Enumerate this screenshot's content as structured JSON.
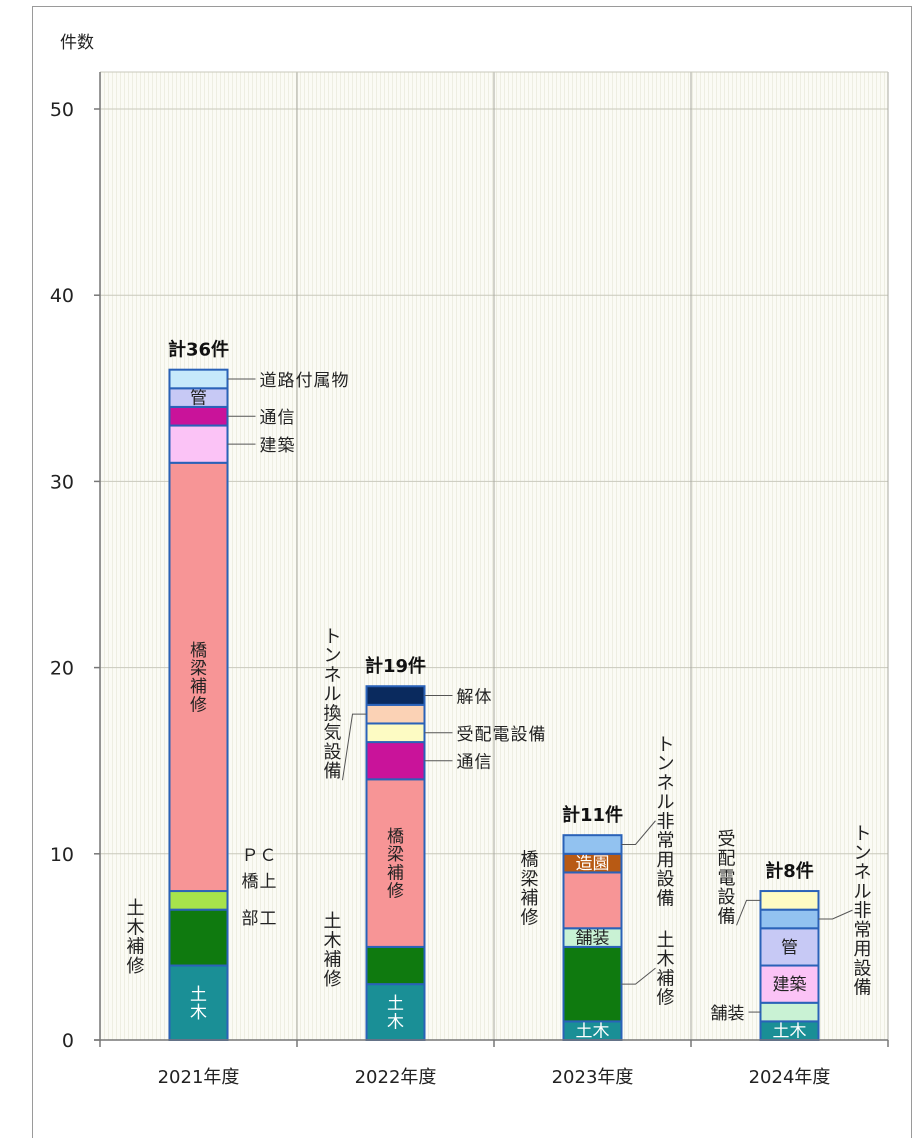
{
  "chart_data": {
    "type": "bar",
    "stacked": true,
    "ylabel": "件数",
    "ylim": [
      0,
      50
    ],
    "yticks": [
      0,
      10,
      20,
      30,
      40,
      50
    ],
    "grid": true,
    "categories": [
      "2021年度",
      "2022年度",
      "2023年度",
      "2024年度"
    ],
    "totals": [
      "計36件",
      "計19件",
      "計11件",
      "計8件"
    ],
    "colors": {
      "土木": "#1a8f96",
      "土木補修": "#0f7a0f",
      "PC橋上部工": "#a7e34b",
      "橋梁補修": "#f79596",
      "建築": "#fbc3f6",
      "通信": "#c9139a",
      "管": "#c7c9f5",
      "道路付属物": "#c6e9fb",
      "受配電設備": "#fdfbc3",
      "トンネル換気設備": "#fbd2b5",
      "解体": "#0a2a5e",
      "舗装": "#c9f2d4",
      "造園": "#b85a14",
      "トンネル非常用設備": "#92c2f0",
      "outline": "#2a62b8"
    },
    "bars": [
      {
        "category": "2021年度",
        "segments": [
          {
            "name": "土木",
            "value": 4,
            "label": "土木"
          },
          {
            "name": "土木補修",
            "value": 3,
            "label": ""
          },
          {
            "name": "PC橋上部工",
            "value": 1,
            "label": ""
          },
          {
            "name": "橋梁補修",
            "value": 23,
            "label": "橋梁補修"
          },
          {
            "name": "建築",
            "value": 2,
            "label": ""
          },
          {
            "name": "通信",
            "value": 1,
            "label": ""
          },
          {
            "name": "管",
            "value": 1,
            "label": "管"
          },
          {
            "name": "道路付属物",
            "value": 1,
            "label": ""
          }
        ]
      },
      {
        "category": "2022年度",
        "segments": [
          {
            "name": "土木",
            "value": 3,
            "label": "土木"
          },
          {
            "name": "土木補修",
            "value": 2,
            "label": ""
          },
          {
            "name": "橋梁補修",
            "value": 9,
            "label": "橋梁補修"
          },
          {
            "name": "通信",
            "value": 2,
            "label": ""
          },
          {
            "name": "受配電設備",
            "value": 1,
            "label": ""
          },
          {
            "name": "トンネル換気設備",
            "value": 1,
            "label": ""
          },
          {
            "name": "解体",
            "value": 1,
            "label": ""
          }
        ]
      },
      {
        "category": "2023年度",
        "segments": [
          {
            "name": "土木",
            "value": 1,
            "label": "土木"
          },
          {
            "name": "土木補修",
            "value": 4,
            "label": ""
          },
          {
            "name": "舗装",
            "value": 1,
            "label": "舗装"
          },
          {
            "name": "橋梁補修",
            "value": 3,
            "label": ""
          },
          {
            "name": "造園",
            "value": 1,
            "label": "造園"
          },
          {
            "name": "トンネル非常用設備",
            "value": 1,
            "label": ""
          }
        ]
      },
      {
        "category": "2024年度",
        "segments": [
          {
            "name": "土木",
            "value": 1,
            "label": "土木"
          },
          {
            "name": "舗装",
            "value": 1,
            "label": ""
          },
          {
            "name": "建築",
            "value": 2,
            "label": "建築"
          },
          {
            "name": "管",
            "value": 2,
            "label": "管"
          },
          {
            "name": "トンネル非常用設備",
            "value": 1,
            "label": ""
          },
          {
            "name": "受配電設備",
            "value": 1,
            "label": ""
          }
        ]
      }
    ],
    "annotations": [
      {
        "bar": 0,
        "level": 35.5,
        "text": "道路付属物",
        "side": "right",
        "orient": "h"
      },
      {
        "bar": 0,
        "level": 33.5,
        "text": "通信",
        "side": "right",
        "orient": "h"
      },
      {
        "bar": 0,
        "level": 32,
        "text": "建築",
        "side": "right",
        "orient": "h"
      },
      {
        "bar": 0,
        "level": 7.5,
        "text": "ＰＣ",
        "side": "right",
        "orient": "h",
        "noLeader": true,
        "textLevel": 10.0
      },
      {
        "bar": 0,
        "level": 7.5,
        "text": "橋上",
        "side": "right",
        "orient": "h",
        "noLeader": true,
        "textLevel": 8.6
      },
      {
        "bar": 0,
        "level": 7.5,
        "text": "部工",
        "side": "right",
        "orient": "h",
        "noLeader": true,
        "textLevel": 6.6
      },
      {
        "bar": 0,
        "level": 5.5,
        "text": "土木補修",
        "side": "left",
        "orient": "v",
        "noLeader": true,
        "textLevel": 7.2
      },
      {
        "bar": 1,
        "level": 18.5,
        "text": "解体",
        "side": "right",
        "orient": "h"
      },
      {
        "bar": 1,
        "level": 16.5,
        "text": "受配電設備",
        "side": "right",
        "orient": "h"
      },
      {
        "bar": 1,
        "level": 15,
        "text": "通信",
        "side": "right",
        "orient": "h"
      },
      {
        "bar": 1,
        "level": 17.5,
        "text": "トンネル換気設備",
        "side": "left",
        "orient": "v",
        "textLevel": 21.8
      },
      {
        "bar": 1,
        "level": 4,
        "text": "土木補修",
        "side": "left",
        "orient": "v",
        "noLeader": true,
        "textLevel": 6.5
      },
      {
        "bar": 2,
        "level": 10.5,
        "text": "トンネル非常用設備",
        "side": "right",
        "orient": "v",
        "textLevel": 16.0
      },
      {
        "bar": 2,
        "level": 7.5,
        "text": "橋梁補修",
        "side": "left",
        "orient": "v",
        "noLeader": true,
        "textLevel": 9.8
      },
      {
        "bar": 2,
        "level": 3,
        "text": "土木補修",
        "side": "right",
        "orient": "v",
        "textLevel": 5.5
      },
      {
        "bar": 3,
        "level": 7.5,
        "text": "受配電設備",
        "side": "left",
        "orient": "v",
        "textLevel": 10.9
      },
      {
        "bar": 3,
        "level": 6.5,
        "text": "トンネル非常用設備",
        "side": "right",
        "orient": "v",
        "textLevel": 11.2
      },
      {
        "bar": 3,
        "level": 1.5,
        "text": "舗装",
        "side": "left",
        "orient": "h"
      }
    ]
  }
}
